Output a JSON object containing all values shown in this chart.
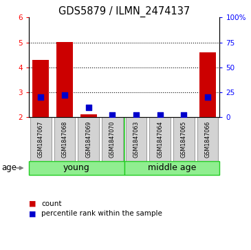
{
  "title": "GDS5879 / ILMN_2474137",
  "samples": [
    "GSM1847067",
    "GSM1847068",
    "GSM1847069",
    "GSM1847070",
    "GSM1847063",
    "GSM1847064",
    "GSM1847065",
    "GSM1847066"
  ],
  "groups": [
    {
      "label": "young",
      "start": 0,
      "end": 4
    },
    {
      "label": "middle age",
      "start": 4,
      "end": 8
    }
  ],
  "group_color": "#90EE90",
  "group_border_color": "#22cc22",
  "red_values": [
    4.3,
    5.02,
    2.12,
    2.0,
    2.0,
    2.0,
    2.0,
    4.6
  ],
  "blue_values": [
    20,
    22,
    10,
    2,
    2,
    2,
    2,
    20
  ],
  "ylim_left": [
    2,
    6
  ],
  "ylim_right": [
    0,
    100
  ],
  "left_yticks": [
    2,
    3,
    4,
    5,
    6
  ],
  "right_yticks": [
    0,
    25,
    50,
    75,
    100
  ],
  "right_yticklabels": [
    "0",
    "25",
    "50",
    "75",
    "100%"
  ],
  "bar_color": "#cc0000",
  "dot_color": "#0000cc",
  "legend_count_label": "count",
  "legend_pct_label": "percentile rank within the sample",
  "age_label": "age",
  "sample_box_color": "#d3d3d3",
  "sample_box_edge_color": "#999999",
  "bar_bottom": 2.0,
  "bar_width": 0.7,
  "dot_size": 30
}
